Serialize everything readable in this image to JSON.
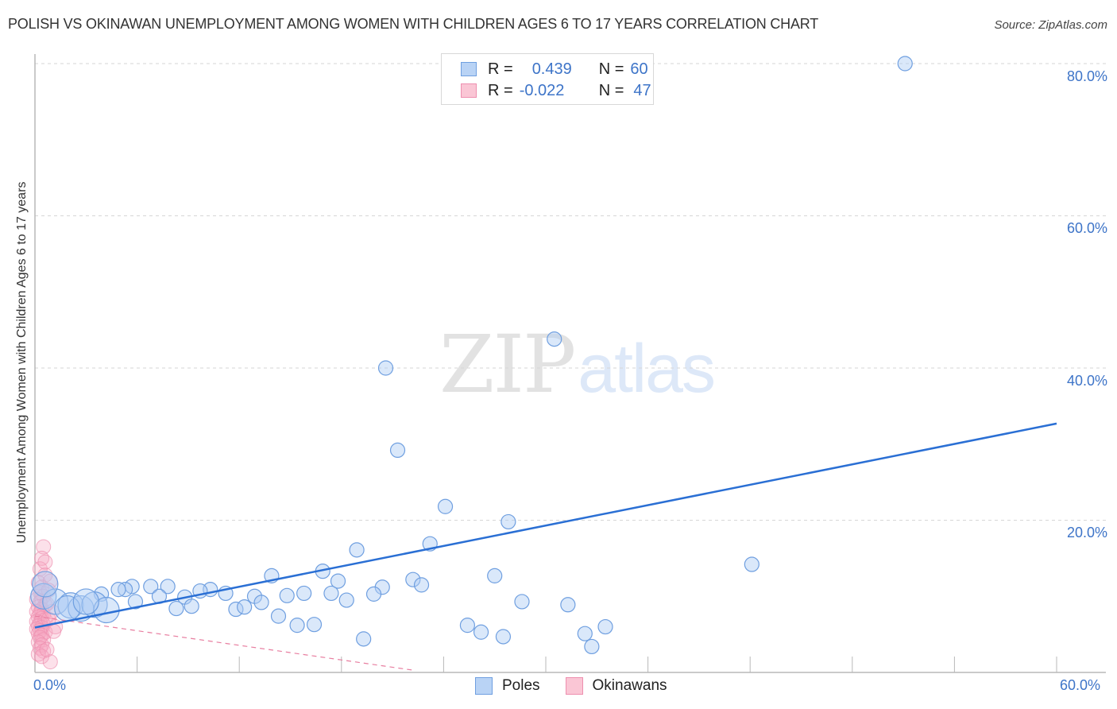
{
  "header": {
    "title": "POLISH VS OKINAWAN UNEMPLOYMENT AMONG WOMEN WITH CHILDREN AGES 6 TO 17 YEARS CORRELATION CHART",
    "source": "Source: ZipAtlas.com"
  },
  "watermark": {
    "zip": "ZIP",
    "atlas": "atlas"
  },
  "legend_stats": {
    "rows": [
      {
        "series": "Poles",
        "r_label": "R =",
        "r_value": "0.439",
        "n_label": "N =",
        "n_value": "60",
        "color": "#aecbf3",
        "border": "#6f9fe0"
      },
      {
        "series": "Okinawans",
        "r_label": "R =",
        "r_value": "-0.022",
        "n_label": "N =",
        "n_value": "47",
        "color": "#f8c3d3",
        "border": "#ee8faf"
      }
    ]
  },
  "bottom_legend": {
    "items": [
      {
        "label": "Poles",
        "color": "#b9d3f5",
        "border": "#6f9fe0"
      },
      {
        "label": "Okinawans",
        "color": "#fac6d5",
        "border": "#ee8faf"
      }
    ]
  },
  "axes": {
    "y_label": "Unemployment Among Women with Children Ages 6 to 17 years",
    "y_ticks": [
      "80.0%",
      "60.0%",
      "40.0%",
      "20.0%"
    ],
    "x_ticks": [
      "0.0%",
      "60.0%"
    ]
  },
  "colors": {
    "poles_fill": "rgba(174,203,243,0.45)",
    "poles_stroke": "#6f9fe0",
    "poles_line": "#2a6fd4",
    "okinawans_fill": "rgba(246,170,195,0.35)",
    "okinawans_stroke": "#ee8faf",
    "okinawans_line": "#e87ea0",
    "grid": "#d6d6d6",
    "axis": "#b8b8b8"
  },
  "chart_data": {
    "type": "scatter",
    "title": "POLISH VS OKINAWAN UNEMPLOYMENT AMONG WOMEN WITH CHILDREN AGES 6 TO 17 YEARS CORRELATION CHART",
    "xlabel": "",
    "ylabel": "Unemployment Among Women with Children Ages 6 to 17 years",
    "xlim": [
      0,
      60
    ],
    "ylim": [
      0,
      84
    ],
    "x_tick_labels": [
      "0.0%",
      "60.0%"
    ],
    "y_tick_labels": [
      "20.0%",
      "40.0%",
      "60.0%",
      "80.0%"
    ],
    "grid": true,
    "legend_position": "bottom-center",
    "series": [
      {
        "name": "Poles",
        "r": 0.439,
        "n": 60,
        "trend": {
          "x0": 0,
          "y0": 5.9,
          "x1": 60,
          "y1": 32.7
        },
        "points": [
          [
            51.1,
            80.0
          ],
          [
            30.5,
            43.8
          ],
          [
            20.6,
            40.0
          ],
          [
            21.3,
            29.2
          ],
          [
            24.1,
            21.8
          ],
          [
            27.8,
            19.8
          ],
          [
            23.2,
            16.9
          ],
          [
            18.9,
            16.1
          ],
          [
            42.1,
            14.2
          ],
          [
            16.9,
            13.3
          ],
          [
            13.9,
            12.7
          ],
          [
            27.0,
            12.7
          ],
          [
            22.2,
            12.2
          ],
          [
            22.7,
            11.5
          ],
          [
            17.8,
            12.0
          ],
          [
            20.4,
            11.2
          ],
          [
            5.7,
            11.3
          ],
          [
            7.8,
            11.3
          ],
          [
            6.8,
            11.3
          ],
          [
            5.3,
            10.9
          ],
          [
            3.9,
            10.3
          ],
          [
            4.9,
            10.9
          ],
          [
            10.3,
            10.9
          ],
          [
            11.2,
            10.4
          ],
          [
            15.8,
            10.4
          ],
          [
            14.8,
            10.1
          ],
          [
            12.9,
            10.0
          ],
          [
            17.4,
            10.4
          ],
          [
            19.9,
            10.3
          ],
          [
            7.3,
            10.0
          ],
          [
            8.8,
            9.9
          ],
          [
            9.7,
            10.7
          ],
          [
            5.9,
            9.3
          ],
          [
            18.3,
            9.5
          ],
          [
            13.3,
            9.2
          ],
          [
            28.6,
            9.3
          ],
          [
            9.2,
            8.7
          ],
          [
            8.3,
            8.4
          ],
          [
            11.8,
            8.3
          ],
          [
            12.3,
            8.6
          ],
          [
            31.3,
            8.9
          ],
          [
            14.3,
            7.4
          ],
          [
            15.4,
            6.2
          ],
          [
            16.4,
            6.3
          ],
          [
            25.4,
            6.2
          ],
          [
            26.2,
            5.3
          ],
          [
            27.5,
            4.7
          ],
          [
            19.3,
            4.4
          ],
          [
            32.3,
            5.1
          ],
          [
            33.5,
            6.0
          ],
          [
            32.7,
            3.4
          ],
          [
            0.5,
            10.0
          ],
          [
            1.2,
            9.3
          ],
          [
            2.1,
            8.8
          ],
          [
            2.7,
            8.4
          ],
          [
            1.9,
            8.4
          ],
          [
            0.6,
            11.6
          ],
          [
            3.5,
            8.9
          ],
          [
            4.2,
            8.2
          ],
          [
            3.0,
            9.3
          ]
        ]
      },
      {
        "name": "Okinawans",
        "r": -0.022,
        "n": 47,
        "trend": {
          "x0": 0,
          "y0": 7.4,
          "x1": 22.2,
          "y1": 0.3,
          "dashed": true
        },
        "points": [
          [
            0.5,
            16.5
          ],
          [
            0.4,
            15.0
          ],
          [
            0.3,
            13.6
          ],
          [
            0.6,
            12.8
          ],
          [
            0.2,
            11.8
          ],
          [
            0.4,
            11.2
          ],
          [
            0.3,
            10.5
          ],
          [
            0.5,
            10.0
          ],
          [
            0.1,
            9.6
          ],
          [
            0.3,
            9.2
          ],
          [
            0.6,
            8.9
          ],
          [
            0.2,
            8.6
          ],
          [
            0.4,
            8.3
          ],
          [
            0.1,
            8.0
          ],
          [
            0.3,
            7.8
          ],
          [
            0.5,
            7.6
          ],
          [
            0.2,
            7.3
          ],
          [
            0.4,
            7.1
          ],
          [
            0.6,
            6.9
          ],
          [
            0.1,
            6.7
          ],
          [
            0.3,
            6.5
          ],
          [
            0.5,
            6.3
          ],
          [
            0.2,
            6.1
          ],
          [
            0.4,
            5.9
          ],
          [
            0.1,
            5.7
          ],
          [
            0.3,
            5.5
          ],
          [
            0.6,
            5.3
          ],
          [
            0.2,
            5.1
          ],
          [
            0.4,
            4.9
          ],
          [
            0.3,
            4.6
          ],
          [
            0.5,
            4.3
          ],
          [
            0.2,
            4.0
          ],
          [
            0.4,
            3.6
          ],
          [
            0.3,
            3.2
          ],
          [
            0.5,
            2.8
          ],
          [
            0.2,
            2.4
          ],
          [
            0.4,
            2.1
          ],
          [
            0.9,
            1.4
          ],
          [
            1.2,
            6.0
          ],
          [
            1.1,
            5.4
          ],
          [
            0.8,
            7.0
          ],
          [
            1.0,
            8.0
          ],
          [
            0.7,
            9.0
          ],
          [
            0.9,
            12.0
          ],
          [
            0.6,
            14.5
          ],
          [
            0.8,
            10.8
          ],
          [
            0.7,
            3.0
          ]
        ]
      }
    ]
  }
}
